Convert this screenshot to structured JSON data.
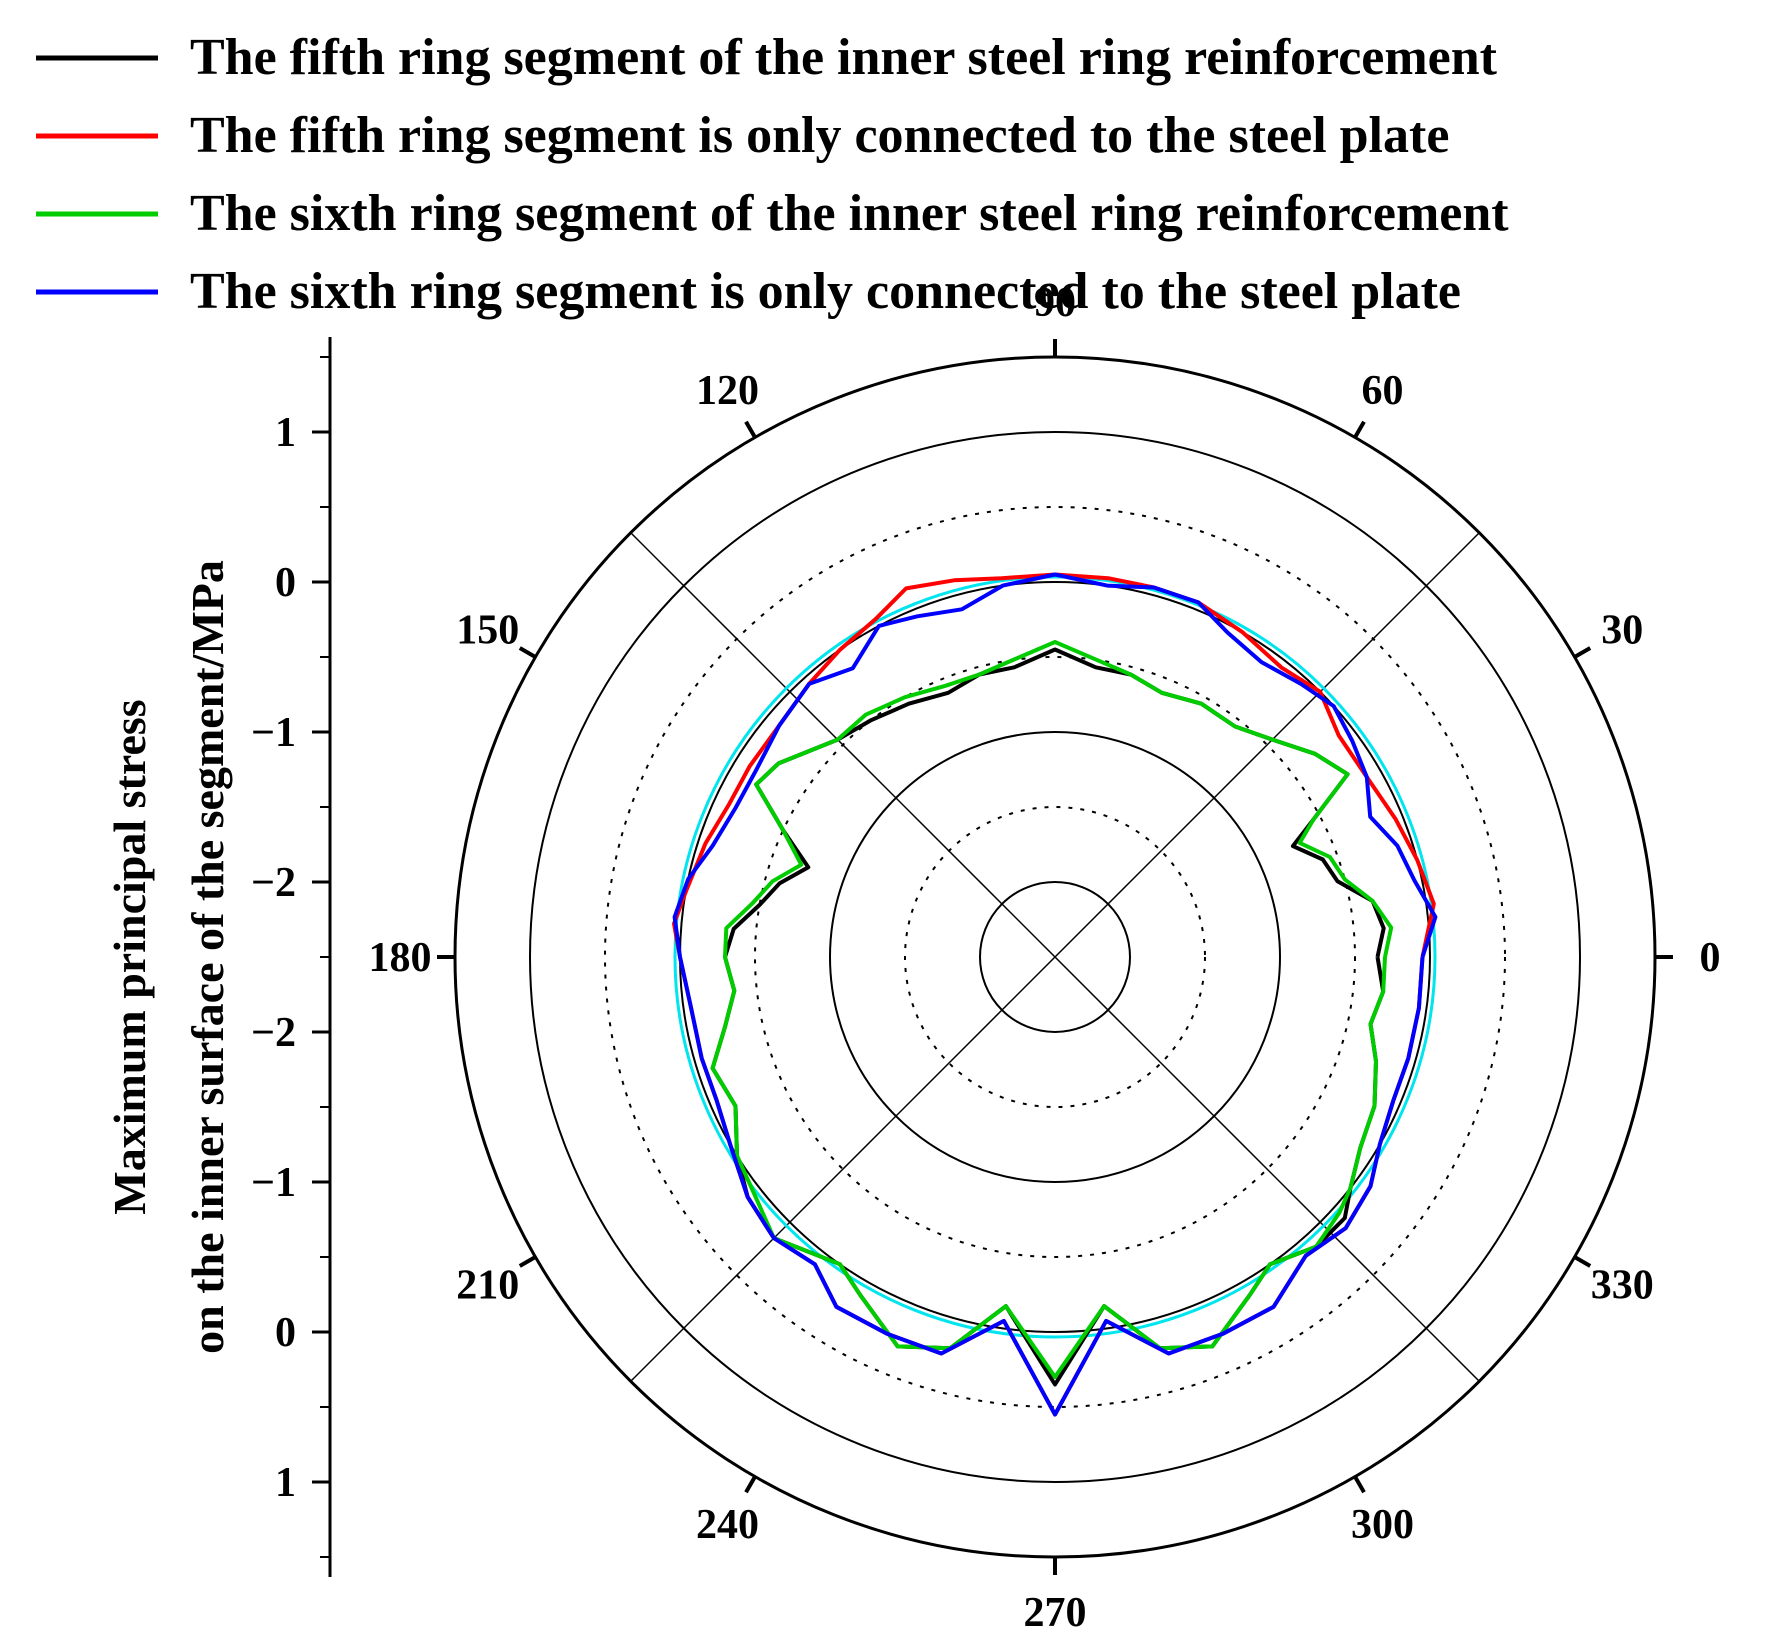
{
  "chart_data": {
    "type": "polar-line",
    "title": "",
    "legend": {
      "position": "top",
      "entries": [
        {
          "label": "The fifth ring segment of the inner steel ring reinforcement",
          "color": "#000000"
        },
        {
          "label": "The fifth ring segment is only connected to the steel plate",
          "color": "#ff0000"
        },
        {
          "label": "The sixth ring segment of the inner steel ring reinforcement",
          "color": "#00cc00"
        },
        {
          "label": "The sixth ring segment is only connected to the steel plate",
          "color": "#0000ff"
        }
      ]
    },
    "radial_axis": {
      "title_lines": [
        "Maximum principal stress",
        "on the inner surface of the segment/MPa"
      ],
      "range": [
        -2.5,
        1.5
      ],
      "tick_values": [
        1,
        0,
        -1,
        -2
      ],
      "tick_labels": [
        "1",
        "0",
        "−1",
        "−2"
      ]
    },
    "angular_axis": {
      "unit": "degrees",
      "ticks": [
        0,
        30,
        60,
        90,
        120,
        150,
        180,
        210,
        240,
        270,
        300,
        330
      ],
      "tick_labels": [
        "0",
        "30",
        "60",
        "90",
        "120",
        "150",
        "180",
        "210",
        "240",
        "270",
        "300",
        "330"
      ]
    },
    "grid": true,
    "reference_circle": {
      "r": 0.0,
      "color": "#00e5ee"
    },
    "series": [
      {
        "name": "The fifth ring segment of the inner steel ring reinforcement",
        "color": "#000000",
        "points": [
          [
            0,
            -0.35
          ],
          [
            5,
            -0.3
          ],
          [
            10,
            -0.35
          ],
          [
            15,
            -0.55
          ],
          [
            20,
            -0.6
          ],
          [
            25,
            -0.75
          ],
          [
            28,
            -0.55
          ],
          [
            32,
            -0.2
          ],
          [
            38,
            -0.3
          ],
          [
            45,
            -0.45
          ],
          [
            52,
            -0.55
          ],
          [
            60,
            -0.55
          ],
          [
            68,
            -0.6
          ],
          [
            75,
            -0.55
          ],
          [
            82,
            -0.55
          ],
          [
            90,
            -0.45
          ],
          [
            98,
            -0.55
          ],
          [
            105,
            -0.55
          ],
          [
            112,
            -0.6
          ],
          [
            120,
            -0.55
          ],
          [
            128,
            -0.5
          ],
          [
            135,
            -0.45
          ],
          [
            145,
            -0.25
          ],
          [
            150,
            -0.2
          ],
          [
            155,
            -0.5
          ],
          [
            160,
            -0.75
          ],
          [
            165,
            -0.6
          ],
          [
            170,
            -0.5
          ],
          [
            175,
            -0.35
          ],
          [
            180,
            -0.3
          ],
          [
            186,
            -0.35
          ],
          [
            192,
            -0.25
          ],
          [
            198,
            -0.1
          ],
          [
            205,
            -0.15
          ],
          [
            212,
            0.0
          ],
          [
            218,
            0.1
          ],
          [
            225,
            0.15
          ],
          [
            235,
            0.0
          ],
          [
            240,
            0.1
          ],
          [
            248,
            0.3
          ],
          [
            255,
            0.2
          ],
          [
            262,
            -0.15
          ],
          [
            270,
            0.35
          ],
          [
            278,
            -0.15
          ],
          [
            285,
            0.2
          ],
          [
            292,
            0.3
          ],
          [
            300,
            0.1
          ],
          [
            305,
            0.0
          ],
          [
            312,
            0.1
          ],
          [
            318,
            0.1
          ],
          [
            322,
            0.0
          ],
          [
            328,
            -0.1
          ],
          [
            335,
            -0.15
          ],
          [
            342,
            -0.25
          ],
          [
            348,
            -0.35
          ],
          [
            354,
            -0.3
          ],
          [
            360,
            -0.35
          ]
        ]
      },
      {
        "name": "The fifth ring segment is only connected to the steel plate",
        "color": "#ff0000",
        "points": [
          [
            0,
            -0.05
          ],
          [
            8,
            0.05
          ],
          [
            15,
            0.0
          ],
          [
            22,
            -0.05
          ],
          [
            30,
            -0.1
          ],
          [
            38,
            -0.1
          ],
          [
            45,
            0.0
          ],
          [
            52,
            -0.05
          ],
          [
            60,
            0.0
          ],
          [
            68,
            0.05
          ],
          [
            75,
            0.05
          ],
          [
            82,
            0.05
          ],
          [
            90,
            0.05
          ],
          [
            98,
            0.05
          ],
          [
            105,
            0.1
          ],
          [
            112,
            0.15
          ],
          [
            118,
            0.05
          ],
          [
            125,
            0.0
          ],
          [
            132,
            -0.05
          ],
          [
            140,
            -0.1
          ],
          [
            148,
            -0.1
          ],
          [
            155,
            -0.1
          ],
          [
            162,
            -0.05
          ],
          [
            170,
            0.0
          ],
          [
            175,
            0.05
          ],
          [
            180,
            0.0
          ],
          [
            188,
            -0.05
          ],
          [
            196,
            -0.05
          ],
          [
            203,
            -0.05
          ],
          [
            210,
            0.0
          ],
          [
            218,
            0.1
          ],
          [
            225,
            0.15
          ],
          [
            232,
            0.1
          ],
          [
            238,
            0.25
          ],
          [
            246,
            0.25
          ],
          [
            254,
            0.25
          ],
          [
            262,
            -0.05
          ],
          [
            270,
            0.55
          ],
          [
            278,
            -0.05
          ],
          [
            286,
            0.25
          ],
          [
            294,
            0.25
          ],
          [
            302,
            0.25
          ],
          [
            310,
            0.1
          ],
          [
            317,
            0.15
          ],
          [
            324,
            0.1
          ],
          [
            330,
            0.0
          ],
          [
            337,
            -0.05
          ],
          [
            344,
            -0.05
          ],
          [
            352,
            -0.05
          ],
          [
            360,
            -0.05
          ]
        ]
      },
      {
        "name": "The sixth ring segment of the inner steel ring reinforcement",
        "color": "#00cc00",
        "points": [
          [
            0,
            -0.3
          ],
          [
            5,
            -0.25
          ],
          [
            10,
            -0.35
          ],
          [
            15,
            -0.5
          ],
          [
            20,
            -0.55
          ],
          [
            25,
            -0.7
          ],
          [
            28,
            -0.55
          ],
          [
            32,
            -0.2
          ],
          [
            38,
            -0.3
          ],
          [
            45,
            -0.45
          ],
          [
            52,
            -0.55
          ],
          [
            60,
            -0.55
          ],
          [
            68,
            -0.6
          ],
          [
            75,
            -0.55
          ],
          [
            82,
            -0.5
          ],
          [
            90,
            -0.4
          ],
          [
            98,
            -0.5
          ],
          [
            105,
            -0.55
          ],
          [
            112,
            -0.55
          ],
          [
            120,
            -0.5
          ],
          [
            128,
            -0.45
          ],
          [
            135,
            -0.45
          ],
          [
            145,
            -0.25
          ],
          [
            150,
            -0.2
          ],
          [
            155,
            -0.5
          ],
          [
            160,
            -0.7
          ],
          [
            165,
            -0.55
          ],
          [
            170,
            -0.45
          ],
          [
            175,
            -0.3
          ],
          [
            180,
            -0.3
          ],
          [
            186,
            -0.35
          ],
          [
            192,
            -0.25
          ],
          [
            198,
            -0.1
          ],
          [
            205,
            -0.15
          ],
          [
            212,
            0.0
          ],
          [
            218,
            0.05
          ],
          [
            225,
            0.15
          ],
          [
            235,
            0.0
          ],
          [
            240,
            0.1
          ],
          [
            248,
            0.3
          ],
          [
            255,
            0.2
          ],
          [
            262,
            -0.15
          ],
          [
            270,
            0.3
          ],
          [
            278,
            -0.15
          ],
          [
            285,
            0.2
          ],
          [
            292,
            0.3
          ],
          [
            300,
            0.1
          ],
          [
            305,
            0.0
          ],
          [
            312,
            0.1
          ],
          [
            318,
            0.05
          ],
          [
            322,
            0.0
          ],
          [
            328,
            -0.1
          ],
          [
            335,
            -0.15
          ],
          [
            342,
            -0.25
          ],
          [
            348,
            -0.35
          ],
          [
            354,
            -0.3
          ],
          [
            360,
            -0.3
          ]
        ]
      },
      {
        "name": "The sixth ring segment is only connected to the steel plate",
        "color": "#0000ff",
        "points": [
          [
            0,
            -0.05
          ],
          [
            6,
            0.05
          ],
          [
            12,
            -0.05
          ],
          [
            18,
            -0.1
          ],
          [
            24,
            -0.2
          ],
          [
            30,
            -0.1
          ],
          [
            36,
            -0.05
          ],
          [
            42,
            0.0
          ],
          [
            48,
            -0.05
          ],
          [
            55,
            -0.1
          ],
          [
            62,
            -0.05
          ],
          [
            68,
            0.05
          ],
          [
            75,
            0.05
          ],
          [
            82,
            0.0
          ],
          [
            90,
            0.05
          ],
          [
            98,
            0.0
          ],
          [
            105,
            -0.1
          ],
          [
            112,
            -0.05
          ],
          [
            118,
            0.0
          ],
          [
            125,
            -0.15
          ],
          [
            132,
            -0.05
          ],
          [
            140,
            -0.1
          ],
          [
            148,
            -0.15
          ],
          [
            155,
            -0.15
          ],
          [
            162,
            -0.1
          ],
          [
            168,
            0.0
          ],
          [
            174,
            0.05
          ],
          [
            180,
            0.0
          ],
          [
            188,
            -0.05
          ],
          [
            196,
            -0.05
          ],
          [
            203,
            -0.05
          ],
          [
            210,
            0.0
          ],
          [
            218,
            0.1
          ],
          [
            225,
            0.15
          ],
          [
            232,
            0.1
          ],
          [
            238,
            0.25
          ],
          [
            246,
            0.25
          ],
          [
            254,
            0.25
          ],
          [
            262,
            -0.05
          ],
          [
            270,
            0.55
          ],
          [
            278,
            -0.05
          ],
          [
            286,
            0.25
          ],
          [
            294,
            0.25
          ],
          [
            302,
            0.25
          ],
          [
            310,
            0.1
          ],
          [
            317,
            0.15
          ],
          [
            324,
            0.1
          ],
          [
            330,
            0.0
          ],
          [
            337,
            -0.05
          ],
          [
            344,
            -0.05
          ],
          [
            352,
            -0.05
          ],
          [
            360,
            -0.05
          ]
        ]
      }
    ]
  }
}
